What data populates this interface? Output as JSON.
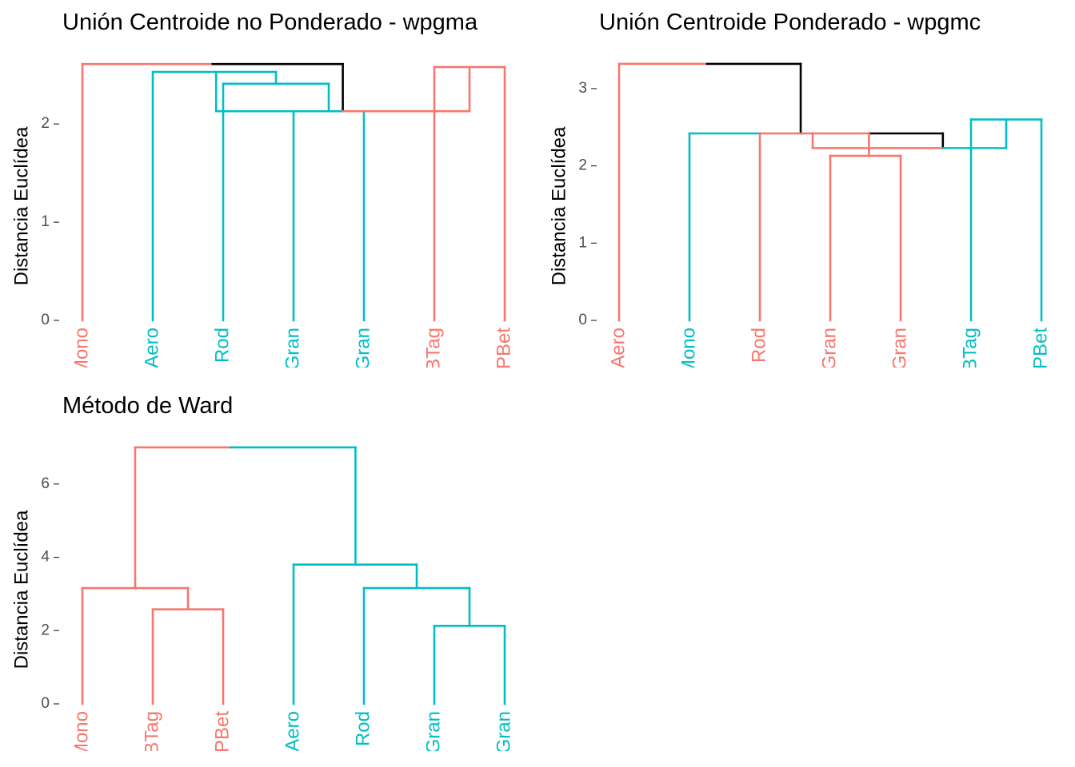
{
  "colors": {
    "red": "#F8766D",
    "teal": "#00BFC4",
    "black": "#000000",
    "axis_text": "#4D4D4D"
  },
  "chart_data": [
    {
      "type": "dendrogram",
      "title": "Unión Centroide no Ponderado - wpgma",
      "ylabel": "Distancia Euclídea",
      "ylim": [
        0,
        2.62
      ],
      "yticks": [
        0,
        1,
        2
      ],
      "leaves": [
        {
          "label": "Mono",
          "color": "red"
        },
        {
          "label": "Aero",
          "color": "teal"
        },
        {
          "label": "Rod",
          "color": "teal"
        },
        {
          "label": "Gran",
          "color": "teal"
        },
        {
          "label": "Gran",
          "color": "teal"
        },
        {
          "label": "BTag",
          "color": "red"
        },
        {
          "label": "PBet",
          "color": "red"
        }
      ],
      "segments": [
        {
          "from": [
            1,
            0
          ],
          "to": [
            1,
            2.61
          ],
          "color": "red"
        },
        {
          "from": [
            1,
            2.61
          ],
          "to": [
            2.85,
            2.61
          ],
          "color": "red"
        },
        {
          "from": [
            2.85,
            2.61
          ],
          "to": [
            4.7,
            2.61
          ],
          "color": "black"
        },
        {
          "from": [
            4.7,
            2.61
          ],
          "to": [
            4.7,
            2.13
          ],
          "color": "black"
        },
        {
          "from": [
            2,
            0
          ],
          "to": [
            2,
            2.53
          ],
          "color": "teal"
        },
        {
          "from": [
            2,
            2.53
          ],
          "to": [
            3.75,
            2.53
          ],
          "color": "teal"
        },
        {
          "from": [
            3.75,
            2.53
          ],
          "to": [
            3.75,
            2.41
          ],
          "color": "teal"
        },
        {
          "from": [
            2.9,
            2.53
          ],
          "to": [
            2.9,
            2.13
          ],
          "color": "teal"
        },
        {
          "from": [
            2.9,
            2.13
          ],
          "to": [
            4.7,
            2.13
          ],
          "color": "teal"
        },
        {
          "from": [
            3,
            0
          ],
          "to": [
            3,
            2.41
          ],
          "color": "teal"
        },
        {
          "from": [
            3,
            2.41
          ],
          "to": [
            4.5,
            2.41
          ],
          "color": "teal"
        },
        {
          "from": [
            4.5,
            2.41
          ],
          "to": [
            4.5,
            2.13
          ],
          "color": "teal"
        },
        {
          "from": [
            4,
            0
          ],
          "to": [
            4,
            2.13
          ],
          "color": "teal"
        },
        {
          "from": [
            5,
            0
          ],
          "to": [
            5,
            2.13
          ],
          "color": "teal"
        },
        {
          "from": [
            4.7,
            2.13
          ],
          "to": [
            6.5,
            2.13
          ],
          "color": "red"
        },
        {
          "from": [
            6.5,
            2.13
          ],
          "to": [
            6.5,
            2.58
          ],
          "color": "red"
        },
        {
          "from": [
            6,
            0
          ],
          "to": [
            6,
            2.58
          ],
          "color": "red"
        },
        {
          "from": [
            6,
            2.58
          ],
          "to": [
            7,
            2.58
          ],
          "color": "red"
        },
        {
          "from": [
            7,
            0
          ],
          "to": [
            7,
            2.58
          ],
          "color": "red"
        }
      ]
    },
    {
      "type": "dendrogram",
      "title": "Unión Centroide Ponderado - wpgmc",
      "ylabel": "Distancia Euclídea",
      "ylim": [
        0,
        3.33
      ],
      "yticks": [
        0,
        1,
        2,
        3
      ],
      "leaves": [
        {
          "label": "Aero",
          "color": "red"
        },
        {
          "label": "Mono",
          "color": "teal"
        },
        {
          "label": "Rod",
          "color": "red"
        },
        {
          "label": "Gran",
          "color": "red"
        },
        {
          "label": "Gran",
          "color": "red"
        },
        {
          "label": "BTag",
          "color": "teal"
        },
        {
          "label": "PBet",
          "color": "teal"
        }
      ],
      "segments": [
        {
          "from": [
            1,
            0
          ],
          "to": [
            1,
            3.32
          ],
          "color": "red"
        },
        {
          "from": [
            1,
            3.32
          ],
          "to": [
            2.25,
            3.32
          ],
          "color": "red"
        },
        {
          "from": [
            2.25,
            3.32
          ],
          "to": [
            3.58,
            3.32
          ],
          "color": "black"
        },
        {
          "from": [
            3.58,
            3.32
          ],
          "to": [
            3.58,
            2.42
          ],
          "color": "black"
        },
        {
          "from": [
            2,
            0
          ],
          "to": [
            2,
            2.42
          ],
          "color": "teal"
        },
        {
          "from": [
            2,
            2.42
          ],
          "to": [
            3,
            2.42
          ],
          "color": "teal"
        },
        {
          "from": [
            3,
            2.42
          ],
          "to": [
            4.55,
            2.42
          ],
          "color": "red"
        },
        {
          "from": [
            4.55,
            2.42
          ],
          "to": [
            5.6,
            2.42
          ],
          "color": "black"
        },
        {
          "from": [
            5.6,
            2.42
          ],
          "to": [
            5.6,
            2.23
          ],
          "color": "black"
        },
        {
          "from": [
            3,
            0
          ],
          "to": [
            3,
            2.42
          ],
          "color": "red"
        },
        {
          "from": [
            4.55,
            2.42
          ],
          "to": [
            4.55,
            2.13
          ],
          "color": "red"
        },
        {
          "from": [
            3.75,
            2.42
          ],
          "to": [
            3.75,
            2.23
          ],
          "color": "red"
        },
        {
          "from": [
            3.75,
            2.23
          ],
          "to": [
            5.6,
            2.23
          ],
          "color": "red"
        },
        {
          "from": [
            4,
            0
          ],
          "to": [
            4,
            2.13
          ],
          "color": "red"
        },
        {
          "from": [
            4,
            2.13
          ],
          "to": [
            5,
            2.13
          ],
          "color": "red"
        },
        {
          "from": [
            5,
            0
          ],
          "to": [
            5,
            2.13
          ],
          "color": "red"
        },
        {
          "from": [
            5.6,
            2.23
          ],
          "to": [
            6.5,
            2.23
          ],
          "color": "teal"
        },
        {
          "from": [
            6.5,
            2.23
          ],
          "to": [
            6.5,
            2.6
          ],
          "color": "teal"
        },
        {
          "from": [
            6,
            0
          ],
          "to": [
            6,
            2.6
          ],
          "color": "teal"
        },
        {
          "from": [
            6,
            2.6
          ],
          "to": [
            7,
            2.6
          ],
          "color": "teal"
        },
        {
          "from": [
            7,
            0
          ],
          "to": [
            7,
            2.6
          ],
          "color": "teal"
        }
      ]
    },
    {
      "type": "dendrogram",
      "title": "Método de Ward",
      "ylabel": "Distancia Euclídea",
      "ylim": [
        0,
        7.02
      ],
      "yticks": [
        0,
        2,
        4,
        6
      ],
      "leaves": [
        {
          "label": "Mono",
          "color": "red"
        },
        {
          "label": "BTag",
          "color": "red"
        },
        {
          "label": "PBet",
          "color": "red"
        },
        {
          "label": "Aero",
          "color": "teal"
        },
        {
          "label": "Rod",
          "color": "teal"
        },
        {
          "label": "Gran",
          "color": "teal"
        },
        {
          "label": "Gran",
          "color": "teal"
        }
      ],
      "segments": [
        {
          "from": [
            1.75,
            3.16
          ],
          "to": [
            1.75,
            7.0
          ],
          "color": "red"
        },
        {
          "from": [
            1.75,
            7.0
          ],
          "to": [
            3.1,
            7.0
          ],
          "color": "red"
        },
        {
          "from": [
            3.1,
            7.0
          ],
          "to": [
            4.88,
            7.0
          ],
          "color": "teal"
        },
        {
          "from": [
            4.88,
            7.0
          ],
          "to": [
            4.88,
            3.8
          ],
          "color": "teal"
        },
        {
          "from": [
            1,
            0
          ],
          "to": [
            1,
            3.16
          ],
          "color": "red"
        },
        {
          "from": [
            1,
            3.16
          ],
          "to": [
            2.5,
            3.16
          ],
          "color": "red"
        },
        {
          "from": [
            2.5,
            3.16
          ],
          "to": [
            2.5,
            2.58
          ],
          "color": "red"
        },
        {
          "from": [
            2,
            0
          ],
          "to": [
            2,
            2.58
          ],
          "color": "red"
        },
        {
          "from": [
            2,
            2.58
          ],
          "to": [
            3,
            2.58
          ],
          "color": "red"
        },
        {
          "from": [
            3,
            0
          ],
          "to": [
            3,
            2.58
          ],
          "color": "red"
        },
        {
          "from": [
            4,
            0
          ],
          "to": [
            4,
            3.8
          ],
          "color": "teal"
        },
        {
          "from": [
            4,
            3.8
          ],
          "to": [
            5.75,
            3.8
          ],
          "color": "teal"
        },
        {
          "from": [
            5.75,
            3.8
          ],
          "to": [
            5.75,
            3.16
          ],
          "color": "teal"
        },
        {
          "from": [
            5,
            0
          ],
          "to": [
            5,
            3.16
          ],
          "color": "teal"
        },
        {
          "from": [
            5,
            3.16
          ],
          "to": [
            6.5,
            3.16
          ],
          "color": "teal"
        },
        {
          "from": [
            6.5,
            3.16
          ],
          "to": [
            6.5,
            2.13
          ],
          "color": "teal"
        },
        {
          "from": [
            6,
            0
          ],
          "to": [
            6,
            2.13
          ],
          "color": "teal"
        },
        {
          "from": [
            6,
            2.13
          ],
          "to": [
            7,
            2.13
          ],
          "color": "teal"
        },
        {
          "from": [
            7,
            0
          ],
          "to": [
            7,
            2.13
          ],
          "color": "teal"
        }
      ]
    }
  ]
}
